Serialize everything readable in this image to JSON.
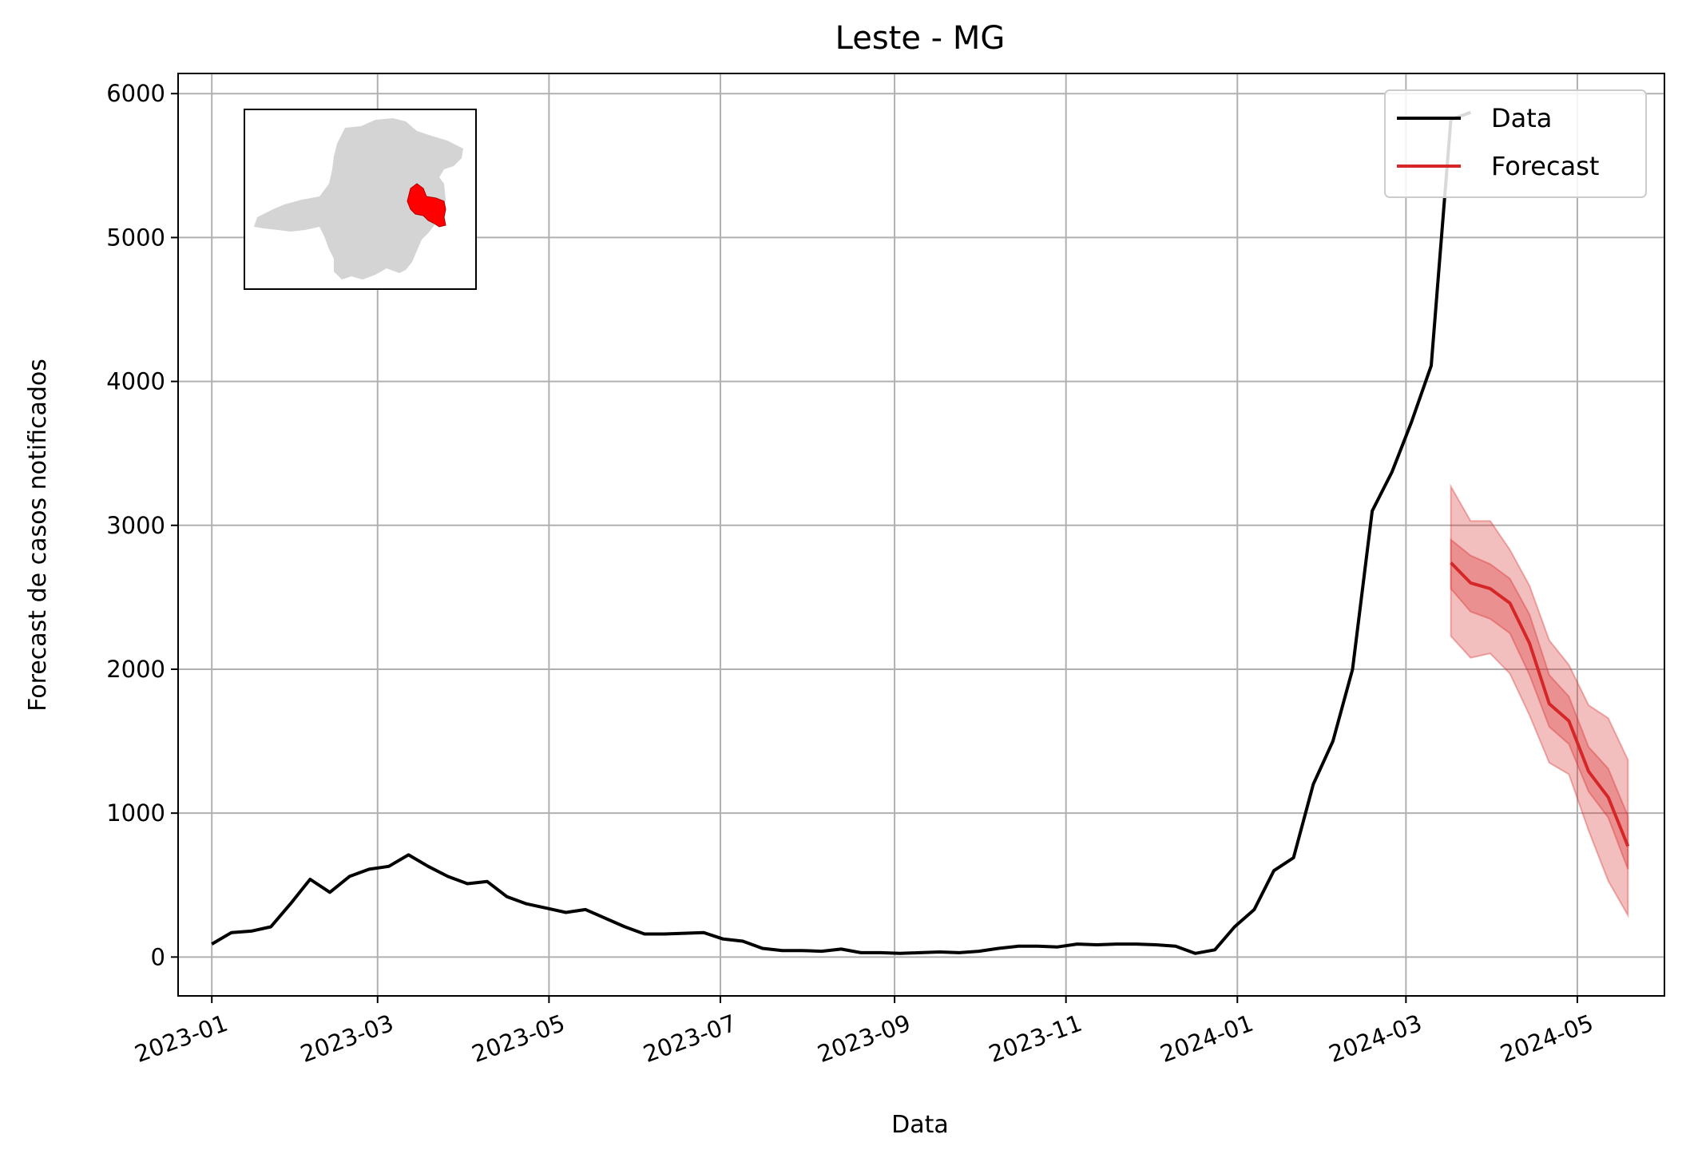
{
  "chart_data": {
    "type": "line",
    "title": "Leste - MG",
    "xlabel": "Data",
    "ylabel": "Forecast de casos notificados",
    "x_ticks": [
      "2023-01",
      "2023-03",
      "2023-05",
      "2023-07",
      "2023-09",
      "2023-11",
      "2024-01",
      "2024-03",
      "2024-05"
    ],
    "y_ticks": [
      0,
      1000,
      2000,
      3000,
      4000,
      5000,
      6000
    ],
    "xlim": [
      "2022-12-20",
      "2024-06-01"
    ],
    "ylim": [
      -270,
      6140
    ],
    "grid": true,
    "legend_position": "top-right",
    "legend": [
      "Data",
      "Forecast"
    ],
    "colors": {
      "data": "#000000",
      "forecast": "#d62728"
    },
    "series": [
      {
        "name": "Data",
        "dates": [
          "2023-01-01",
          "2023-01-08",
          "2023-01-15",
          "2023-01-22",
          "2023-01-29",
          "2023-02-05",
          "2023-02-12",
          "2023-02-19",
          "2023-02-26",
          "2023-03-05",
          "2023-03-12",
          "2023-03-19",
          "2023-03-26",
          "2023-04-02",
          "2023-04-09",
          "2023-04-16",
          "2023-04-23",
          "2023-04-30",
          "2023-05-07",
          "2023-05-14",
          "2023-05-21",
          "2023-05-28",
          "2023-06-04",
          "2023-06-11",
          "2023-06-18",
          "2023-06-25",
          "2023-07-02",
          "2023-07-09",
          "2023-07-16",
          "2023-07-23",
          "2023-07-30",
          "2023-08-06",
          "2023-08-13",
          "2023-08-20",
          "2023-08-27",
          "2023-09-03",
          "2023-09-10",
          "2023-09-17",
          "2023-09-24",
          "2023-10-01",
          "2023-10-08",
          "2023-10-15",
          "2023-10-22",
          "2023-10-29",
          "2023-11-05",
          "2023-11-12",
          "2023-11-19",
          "2023-11-26",
          "2023-12-03",
          "2023-12-10",
          "2023-12-17",
          "2023-12-24",
          "2023-12-31",
          "2024-01-07",
          "2024-01-14",
          "2024-01-21",
          "2024-01-28",
          "2024-02-04",
          "2024-02-11",
          "2024-02-18",
          "2024-02-25",
          "2024-03-03",
          "2024-03-10",
          "2024-03-17",
          "2024-03-24"
        ],
        "values": [
          90,
          170,
          180,
          210,
          370,
          540,
          450,
          560,
          610,
          630,
          710,
          630,
          560,
          510,
          525,
          420,
          370,
          340,
          310,
          330,
          270,
          210,
          160,
          160,
          165,
          170,
          125,
          110,
          60,
          45,
          45,
          40,
          55,
          30,
          30,
          25,
          30,
          35,
          30,
          40,
          60,
          75,
          75,
          70,
          90,
          85,
          90,
          90,
          85,
          75,
          25,
          50,
          210,
          330,
          600,
          690,
          1200,
          1500,
          2000,
          3100,
          3370,
          3720,
          4110,
          5820,
          5870
        ]
      },
      {
        "name": "Forecast",
        "dates": [
          "2024-03-17",
          "2024-03-24",
          "2024-03-31",
          "2024-04-07",
          "2024-04-14",
          "2024-04-21",
          "2024-04-28",
          "2024-05-05",
          "2024-05-12",
          "2024-05-19"
        ],
        "values": [
          2740,
          2600,
          2560,
          2460,
          2180,
          1760,
          1640,
          1290,
          1110,
          770
        ],
        "inner_lower": [
          2560,
          2400,
          2350,
          2250,
          1960,
          1600,
          1480,
          1150,
          970,
          610
        ],
        "inner_upper": [
          2900,
          2790,
          2730,
          2630,
          2380,
          1960,
          1810,
          1460,
          1310,
          980
        ],
        "outer_lower": [
          2230,
          2080,
          2110,
          1970,
          1680,
          1350,
          1270,
          880,
          530,
          290
        ],
        "outer_upper": [
          3270,
          3030,
          3030,
          2830,
          2580,
          2200,
          2030,
          1750,
          1660,
          1370
        ]
      }
    ]
  }
}
